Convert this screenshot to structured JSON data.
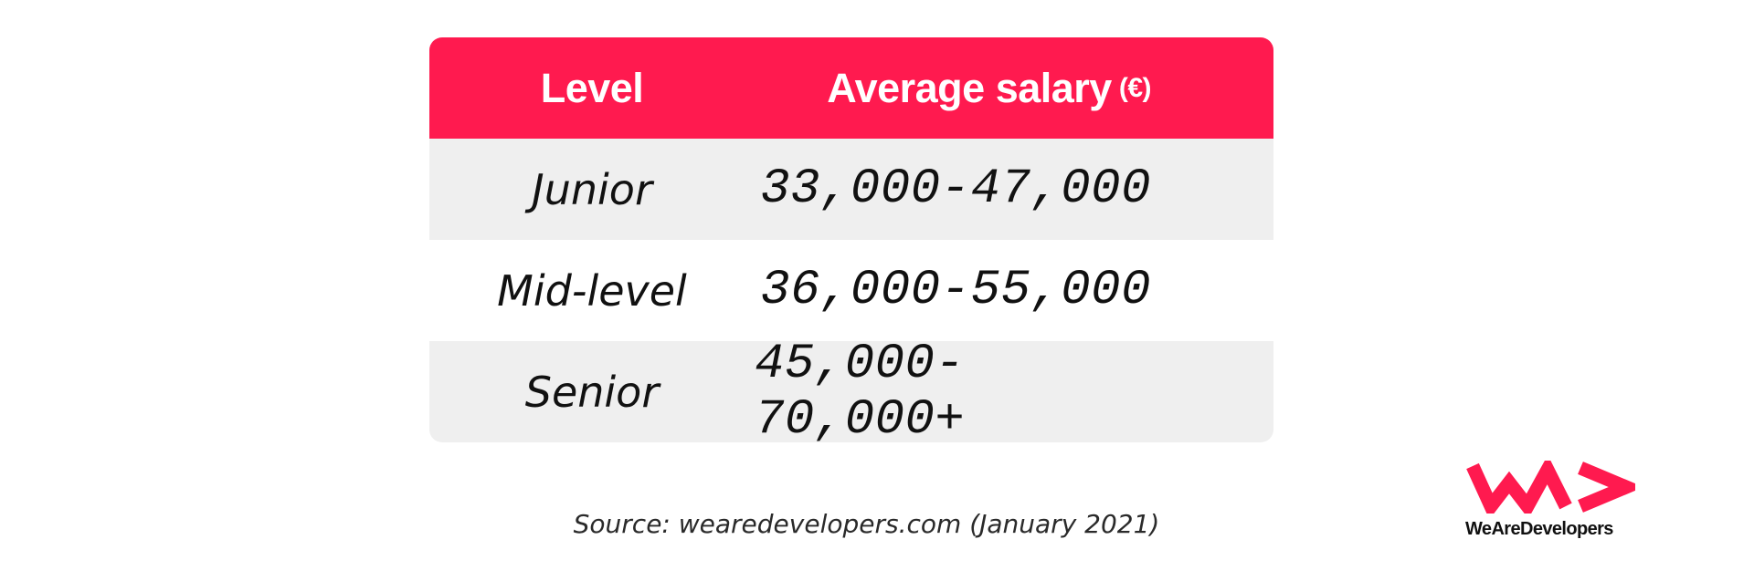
{
  "table": {
    "header": {
      "level": "Level",
      "salary": "Average salary",
      "unit": "(€)"
    },
    "rows": [
      {
        "level": "Junior",
        "salary": "33,000-47,000"
      },
      {
        "level": "Mid-level",
        "salary": "36,000-55,000"
      },
      {
        "level": "Senior",
        "salary": "45,000-70,000+"
      }
    ]
  },
  "source": "Source: wearedevelopers.com (January 2021)",
  "logo": {
    "text": "WeAreDevelopers",
    "icon": "wearedevelopers-logo-icon"
  },
  "colors": {
    "accent": "#ff1a4f",
    "row_shaded": "#efefef",
    "text": "#111111"
  },
  "chart_data": {
    "type": "table",
    "columns": [
      "Level",
      "Average salary (€)"
    ],
    "rows": [
      [
        "Junior",
        "33,000-47,000"
      ],
      [
        "Mid-level",
        "36,000-55,000"
      ],
      [
        "Senior",
        "45,000-70,000+"
      ]
    ],
    "source": "Source: wearedevelopers.com (January 2021)"
  }
}
